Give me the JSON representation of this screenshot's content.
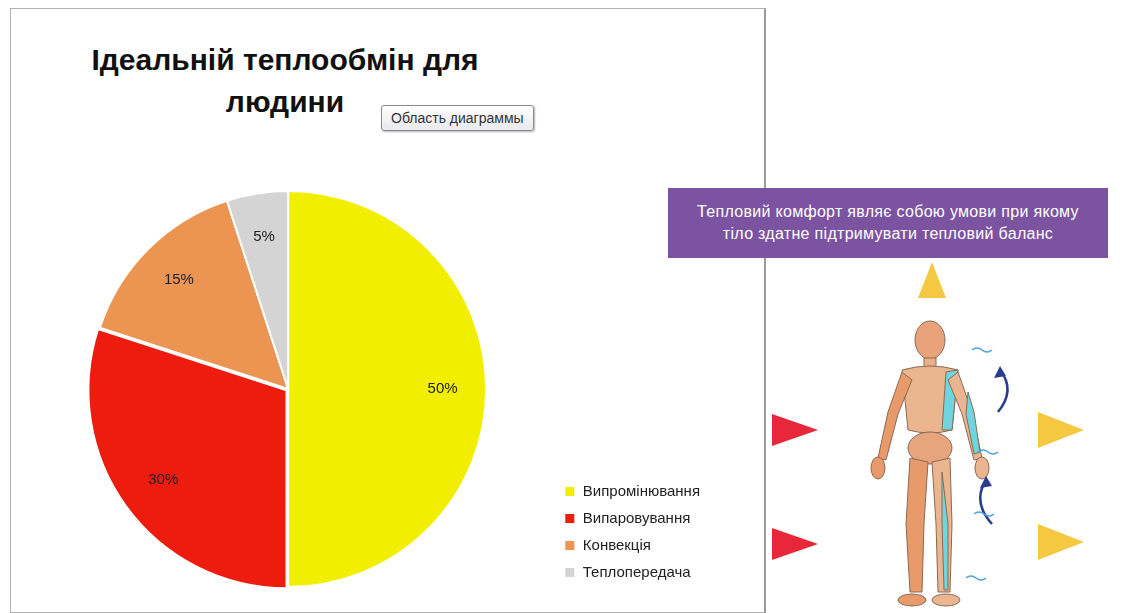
{
  "chart_data": {
    "type": "pie",
    "title": "Ідеальній теплообмін для людини",
    "categories": [
      "Випромінювання",
      "Випаровування",
      "Конвекція",
      "Теплопередача"
    ],
    "values": [
      50,
      30,
      15,
      5
    ],
    "value_labels": [
      "50%",
      "30%",
      "15%",
      "5%"
    ],
    "colors": [
      "#f2ee00",
      "#ee1c0e",
      "#ec9451",
      "#d4d4d4"
    ],
    "data_labels": true,
    "legend": "lower right",
    "annotations": [
      "Область диаграммы",
      "Тепловий комфорт являє собою умови при якому тіло здатне підтримувати тепловий баланс"
    ]
  }
}
